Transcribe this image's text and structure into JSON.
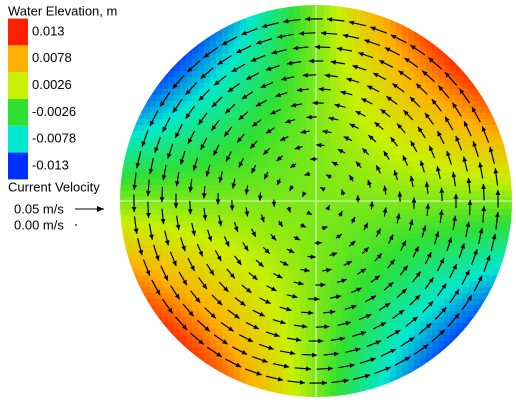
{
  "chart_data": {
    "type": "contour",
    "title": "Water Elevation, m",
    "levels": [
      0.013,
      0.0078,
      0.0026,
      -0.0026,
      -0.0078,
      -0.013
    ],
    "colors": [
      "#ff2000",
      "#ffb000",
      "#c8f000",
      "#30e030",
      "#00e8d0",
      "#0030ff"
    ],
    "vector_title": "Current Velocity",
    "vector_labels": [
      "0.05 m/s",
      "0.00 m/s"
    ]
  }
}
